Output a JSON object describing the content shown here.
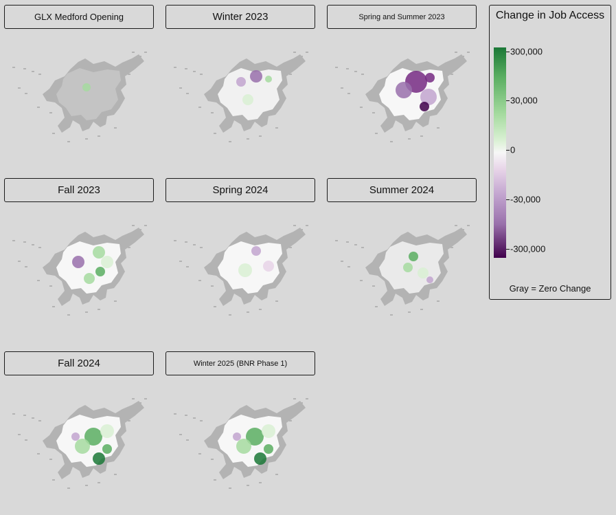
{
  "panels": [
    {
      "title": "GLX Medford Opening",
      "tint": "neutral"
    },
    {
      "title": "Winter 2023",
      "tint": "mixed"
    },
    {
      "title": "Spring and Summer 2023",
      "tint": "purple"
    },
    {
      "title": "Fall 2023",
      "tint": "green"
    },
    {
      "title": "Spring 2024",
      "tint": "neutral-purple"
    },
    {
      "title": "Summer 2024",
      "tint": "green-light"
    },
    {
      "title": "Fall 2024",
      "tint": "green-strong"
    },
    {
      "title": "Winter 2025 (BNR Phase 1)",
      "tint": "green-strong"
    }
  ],
  "legend": {
    "title": "Change in Job Access",
    "ticks": [
      "300,000",
      "30,000",
      "0",
      "-30,000",
      "-300,000"
    ],
    "note": "Gray = Zero Change"
  },
  "colors": {
    "background": "#d9d9d9",
    "zero_change": "#b3b3b3",
    "positive_max": "#1b7837",
    "negative_max": "#40004b",
    "neutral": "#f7f7f7"
  }
}
